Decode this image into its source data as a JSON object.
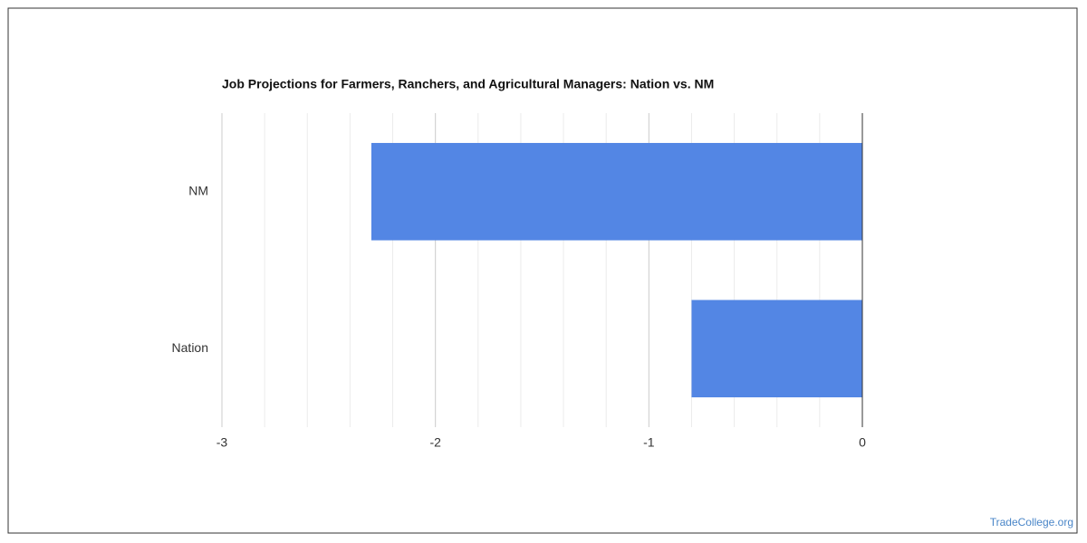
{
  "chart_data": {
    "type": "hbar",
    "title": "Job Projections for Farmers, Ranchers, and Agricultural Managers: Nation vs. NM",
    "categories": [
      "NM",
      "Nation"
    ],
    "values": [
      -2.3,
      -0.8
    ],
    "color": "#5386e4",
    "xlim": [
      -3,
      0
    ],
    "xticks": [
      -3,
      -2,
      -1,
      0
    ],
    "minor_xticks": [
      -2.8,
      -2.6,
      -2.4,
      -2.2,
      -1.8,
      -1.6,
      -1.4,
      -1.2,
      -0.8,
      -0.6,
      -0.4,
      -0.2
    ],
    "grid": true,
    "source": "TradeCollege.org"
  }
}
